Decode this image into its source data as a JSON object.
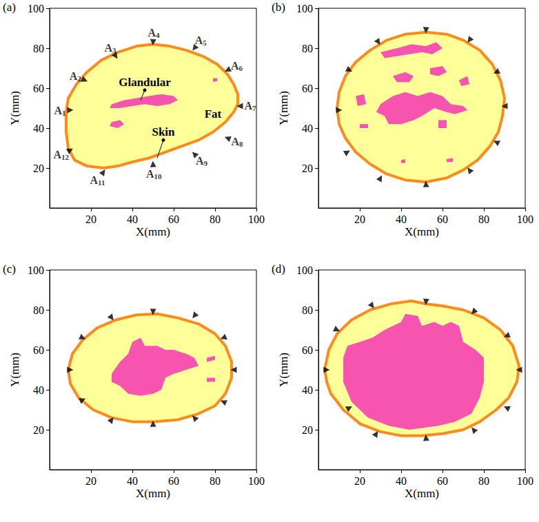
{
  "chart_data": [
    {
      "type": "polygon",
      "panel": "(a)",
      "xlabel": "X(mm)",
      "ylabel": "Y(mm)",
      "xlim": [
        0,
        100
      ],
      "ylim": [
        0,
        100
      ],
      "xticks": [
        20,
        40,
        60,
        80,
        100
      ],
      "yticks": [
        20,
        40,
        60,
        80,
        100
      ],
      "grid": false,
      "marker": "triangle",
      "colors": {
        "skin": "#FF8A1C",
        "fat": "#FFFF99",
        "glandular": "#F754B0",
        "antenna": "#000000"
      },
      "outline": [
        [
          8,
          48
        ],
        [
          9,
          55
        ],
        [
          13,
          62
        ],
        [
          18,
          68
        ],
        [
          25,
          74
        ],
        [
          33,
          78
        ],
        [
          42,
          81
        ],
        [
          50,
          82
        ],
        [
          58,
          81
        ],
        [
          66,
          79
        ],
        [
          74,
          76
        ],
        [
          81,
          72
        ],
        [
          86,
          67
        ],
        [
          89,
          62
        ],
        [
          91,
          57
        ],
        [
          91,
          52
        ],
        [
          89,
          48
        ],
        [
          85,
          43
        ],
        [
          79,
          38
        ],
        [
          72,
          34
        ],
        [
          64,
          31
        ],
        [
          56,
          28
        ],
        [
          48,
          25
        ],
        [
          40,
          23
        ],
        [
          33,
          21
        ],
        [
          26,
          20
        ],
        [
          18,
          21
        ],
        [
          12,
          24
        ],
        [
          9,
          30
        ],
        [
          8,
          38
        ],
        [
          8,
          44
        ]
      ],
      "glandular": [
        [
          [
            30,
            52
          ],
          [
            36,
            54
          ],
          [
            42,
            55
          ],
          [
            48,
            56
          ],
          [
            54,
            57
          ],
          [
            60,
            56
          ],
          [
            62,
            54
          ],
          [
            58,
            52
          ],
          [
            52,
            51
          ],
          [
            46,
            52
          ],
          [
            40,
            51
          ],
          [
            34,
            50
          ],
          [
            29,
            50
          ]
        ],
        [
          [
            30,
            43
          ],
          [
            34,
            44
          ],
          [
            36,
            42
          ],
          [
            33,
            40
          ],
          [
            29,
            41
          ]
        ],
        [
          [
            79,
            63
          ],
          [
            81,
            63.5
          ],
          [
            81,
            65
          ],
          [
            79,
            65
          ]
        ]
      ],
      "antennas": [
        [
          10,
          49
        ],
        [
          17,
          64
        ],
        [
          32,
          76
        ],
        [
          50,
          83
        ],
        [
          70,
          80
        ],
        [
          86,
          69
        ],
        [
          92,
          51
        ],
        [
          86,
          35
        ],
        [
          70,
          27
        ],
        [
          50,
          22
        ],
        [
          26,
          18
        ],
        [
          10,
          29
        ]
      ],
      "antenna_labels": [
        "A1",
        "A2",
        "A3",
        "A4",
        "A5",
        "A6",
        "A7",
        "A8",
        "A9",
        "A10",
        "A11",
        "A12"
      ],
      "annotations": [
        {
          "text": "Glandular",
          "at": [
            46,
            59
          ],
          "point": [
            44,
            54
          ]
        },
        {
          "text": "Fat",
          "at": [
            79,
            47
          ]
        },
        {
          "text": "Skin",
          "at": [
            55,
            34
          ],
          "point": [
            52,
            25
          ]
        }
      ]
    },
    {
      "type": "polygon",
      "panel": "(b)",
      "xlabel": "X(mm)",
      "ylabel": "Y(mm)",
      "xlim": [
        0,
        100
      ],
      "ylim": [
        0,
        100
      ],
      "xticks": [
        20,
        40,
        60,
        80,
        100
      ],
      "yticks": [
        20,
        40,
        60,
        80,
        100
      ],
      "grid": false,
      "marker": "triangle",
      "colors": {
        "skin": "#FF8A1C",
        "fat": "#FFFF99",
        "glandular": "#F754B0",
        "antenna": "#000000"
      },
      "outline": [
        [
          9,
          50
        ],
        [
          10,
          58
        ],
        [
          13,
          66
        ],
        [
          18,
          73
        ],
        [
          25,
          79
        ],
        [
          33,
          84
        ],
        [
          42,
          87
        ],
        [
          52,
          88
        ],
        [
          62,
          87
        ],
        [
          70,
          84
        ],
        [
          78,
          79
        ],
        [
          84,
          72
        ],
        [
          88,
          64
        ],
        [
          90,
          55
        ],
        [
          89,
          46
        ],
        [
          87,
          38
        ],
        [
          83,
          31
        ],
        [
          77,
          24
        ],
        [
          70,
          19
        ],
        [
          62,
          15
        ],
        [
          52,
          13
        ],
        [
          42,
          14
        ],
        [
          33,
          17
        ],
        [
          25,
          22
        ],
        [
          18,
          28
        ],
        [
          13,
          35
        ],
        [
          10,
          42
        ]
      ],
      "glandular": [
        [
          [
            30,
            78
          ],
          [
            38,
            80
          ],
          [
            45,
            82
          ],
          [
            52,
            81
          ],
          [
            57,
            83
          ],
          [
            60,
            80
          ],
          [
            55,
            77
          ],
          [
            50,
            78
          ],
          [
            44,
            77
          ],
          [
            38,
            76
          ],
          [
            32,
            75
          ]
        ],
        [
          [
            36,
            66
          ],
          [
            42,
            68
          ],
          [
            46,
            66
          ],
          [
            44,
            63
          ],
          [
            38,
            63
          ]
        ],
        [
          [
            54,
            70
          ],
          [
            60,
            71
          ],
          [
            62,
            68
          ],
          [
            58,
            66
          ],
          [
            54,
            67
          ]
        ],
        [
          [
            18,
            56
          ],
          [
            22,
            57
          ],
          [
            23,
            52
          ],
          [
            19,
            51
          ]
        ],
        [
          [
            30,
            52
          ],
          [
            36,
            56
          ],
          [
            42,
            58
          ],
          [
            48,
            56
          ],
          [
            54,
            58
          ],
          [
            60,
            56
          ],
          [
            64,
            52
          ],
          [
            70,
            51
          ],
          [
            72,
            49
          ],
          [
            66,
            47
          ],
          [
            62,
            48
          ],
          [
            56,
            50
          ],
          [
            50,
            46
          ],
          [
            46,
            44
          ],
          [
            40,
            42
          ],
          [
            34,
            42
          ],
          [
            32,
            46
          ],
          [
            28,
            48
          ]
        ],
        [
          [
            58,
            44
          ],
          [
            62,
            44
          ],
          [
            62,
            40
          ],
          [
            58,
            40
          ]
        ],
        [
          [
            20,
            42
          ],
          [
            24,
            42
          ],
          [
            24,
            40
          ],
          [
            20,
            40
          ]
        ],
        [
          [
            40,
            24
          ],
          [
            42,
            24.5
          ],
          [
            42,
            22.5
          ],
          [
            40,
            22.5
          ]
        ],
        [
          [
            62,
            24.5
          ],
          [
            65,
            25
          ],
          [
            65,
            23
          ],
          [
            62,
            23
          ]
        ],
        [
          [
            68,
            64
          ],
          [
            72,
            66
          ],
          [
            73,
            62
          ],
          [
            69,
            61
          ]
        ]
      ],
      "antennas": [
        [
          10,
          49
        ],
        [
          15,
          69
        ],
        [
          29,
          83
        ],
        [
          52,
          89
        ],
        [
          73,
          84
        ],
        [
          86,
          68
        ],
        [
          90,
          51
        ],
        [
          86,
          33
        ],
        [
          73,
          19
        ],
        [
          52,
          12
        ],
        [
          30,
          15
        ],
        [
          14,
          28
        ]
      ]
    },
    {
      "type": "polygon",
      "panel": "(c)",
      "xlabel": "X(mm)",
      "ylabel": "Y(mm)",
      "xlim": [
        0,
        100
      ],
      "ylim": [
        0,
        100
      ],
      "xticks": [
        20,
        40,
        60,
        80,
        100
      ],
      "yticks": [
        20,
        40,
        60,
        80,
        100
      ],
      "grid": false,
      "marker": "triangle",
      "colors": {
        "skin": "#FF8A1C",
        "fat": "#FFFF99",
        "glandular": "#F754B0",
        "antenna": "#000000"
      },
      "outline": [
        [
          9,
          50
        ],
        [
          11,
          58
        ],
        [
          16,
          65
        ],
        [
          23,
          71
        ],
        [
          32,
          75
        ],
        [
          42,
          77.5
        ],
        [
          52,
          78
        ],
        [
          62,
          76
        ],
        [
          72,
          73
        ],
        [
          80,
          68
        ],
        [
          85,
          62
        ],
        [
          88,
          54
        ],
        [
          88,
          46
        ],
        [
          85,
          38
        ],
        [
          80,
          32
        ],
        [
          72,
          28
        ],
        [
          62,
          25
        ],
        [
          50,
          24
        ],
        [
          40,
          24
        ],
        [
          30,
          26
        ],
        [
          21,
          30
        ],
        [
          14,
          36
        ],
        [
          10,
          43
        ]
      ],
      "glandular": [
        [
          [
            30,
            48
          ],
          [
            34,
            54
          ],
          [
            38,
            58
          ],
          [
            40,
            64
          ],
          [
            44,
            66
          ],
          [
            46,
            62
          ],
          [
            52,
            62
          ],
          [
            56,
            60
          ],
          [
            60,
            60
          ],
          [
            66,
            58
          ],
          [
            70,
            56
          ],
          [
            72,
            52
          ],
          [
            66,
            50
          ],
          [
            60,
            48
          ],
          [
            56,
            46
          ],
          [
            54,
            40
          ],
          [
            50,
            38
          ],
          [
            44,
            37
          ],
          [
            38,
            38
          ],
          [
            34,
            42
          ],
          [
            30,
            44
          ]
        ],
        [
          [
            76,
            56
          ],
          [
            80,
            57
          ],
          [
            80,
            55
          ],
          [
            76,
            54
          ]
        ],
        [
          [
            76,
            46
          ],
          [
            80,
            46
          ],
          [
            80,
            44
          ],
          [
            76,
            44
          ]
        ]
      ],
      "antennas": [
        [
          10,
          50
        ],
        [
          16,
          66
        ],
        [
          30,
          76
        ],
        [
          50,
          79
        ],
        [
          70,
          77
        ],
        [
          84,
          66
        ],
        [
          89,
          50
        ],
        [
          84,
          34
        ],
        [
          70,
          26
        ],
        [
          50,
          23
        ],
        [
          30,
          25
        ],
        [
          16,
          35
        ]
      ]
    },
    {
      "type": "polygon",
      "panel": "(d)",
      "xlabel": "X(mm)",
      "ylabel": "Y(mm)",
      "xlim": [
        0,
        100
      ],
      "ylim": [
        0,
        100
      ],
      "xticks": [
        20,
        40,
        60,
        80,
        100
      ],
      "yticks": [
        20,
        40,
        60,
        80,
        100
      ],
      "grid": false,
      "marker": "triangle",
      "colors": {
        "skin": "#FF8A1C",
        "fat": "#FFFF99",
        "glandular": "#F754B0",
        "antenna": "#000000"
      },
      "outline": [
        [
          3,
          50
        ],
        [
          5,
          60
        ],
        [
          9,
          68
        ],
        [
          16,
          75
        ],
        [
          25,
          80
        ],
        [
          35,
          83
        ],
        [
          45,
          84.5
        ],
        [
          52,
          83
        ],
        [
          60,
          82
        ],
        [
          70,
          80
        ],
        [
          80,
          76
        ],
        [
          88,
          70
        ],
        [
          94,
          62
        ],
        [
          97,
          52
        ],
        [
          96,
          44
        ],
        [
          92,
          36
        ],
        [
          86,
          30
        ],
        [
          78,
          24
        ],
        [
          70,
          20
        ],
        [
          60,
          18
        ],
        [
          50,
          17
        ],
        [
          40,
          17
        ],
        [
          30,
          19
        ],
        [
          20,
          23
        ],
        [
          12,
          30
        ],
        [
          6,
          38
        ],
        [
          4,
          44
        ]
      ],
      "glandular": [
        [
          [
            12,
            56
          ],
          [
            14,
            62
          ],
          [
            20,
            64
          ],
          [
            26,
            66
          ],
          [
            32,
            70
          ],
          [
            40,
            74
          ],
          [
            42,
            78
          ],
          [
            48,
            77
          ],
          [
            50,
            72
          ],
          [
            56,
            74
          ],
          [
            60,
            72
          ],
          [
            64,
            74
          ],
          [
            68,
            72
          ],
          [
            70,
            64
          ],
          [
            76,
            60
          ],
          [
            80,
            56
          ],
          [
            80,
            44
          ],
          [
            78,
            36
          ],
          [
            74,
            28
          ],
          [
            66,
            24
          ],
          [
            58,
            22
          ],
          [
            44,
            20
          ],
          [
            34,
            22
          ],
          [
            24,
            26
          ],
          [
            16,
            34
          ],
          [
            12,
            44
          ]
        ]
      ],
      "antennas": [
        [
          4,
          50
        ],
        [
          9,
          70
        ],
        [
          26,
          82
        ],
        [
          52,
          84
        ],
        [
          75,
          79
        ],
        [
          91,
          67
        ],
        [
          97,
          50
        ],
        [
          91,
          31
        ],
        [
          75,
          20
        ],
        [
          52,
          16
        ],
        [
          28,
          18
        ],
        [
          15,
          31
        ]
      ]
    }
  ]
}
